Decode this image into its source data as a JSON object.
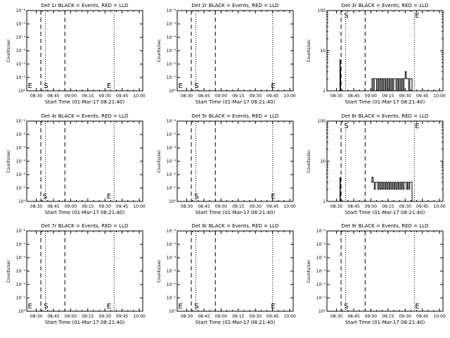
{
  "page": {
    "background": "#ffffff",
    "ink": "#000000"
  },
  "chart_data": [
    {
      "type": "line",
      "title": "Det 1r BLACK = Events, RED = LLD",
      "xlabel": "Start Time (01-Mar-17 08:21:40)",
      "ylabel": "Counts/sec",
      "x_ticks": [
        "08:30",
        "08:45",
        "09:00",
        "09:15",
        "09:30",
        "09:45",
        "10:00"
      ],
      "y_scale": "log",
      "y_ticks": [
        "10⁰",
        "10⁻¹",
        "10⁻²",
        "10⁻³",
        "10⁻⁴",
        "10⁻⁵",
        "10⁻⁶"
      ],
      "markers": [
        {
          "label": "E",
          "time": "08:22"
        },
        {
          "label": "S",
          "time": "08:36"
        },
        {
          "label": "E",
          "time": "09:31"
        }
      ],
      "dashed_lines": [
        "08:34",
        "08:55"
      ],
      "dotted_lines": [
        "08:38",
        "09:38"
      ],
      "series": []
    },
    {
      "type": "line",
      "title": "Det 2r BLACK = Events, RED = LLD",
      "xlabel": "Start Time (01-Mar-17 08:21:40)",
      "ylabel": "Counts/sec",
      "x_ticks": [
        "08:30",
        "08:45",
        "09:00",
        "09:15",
        "09:30",
        "09:45",
        "10:00"
      ],
      "y_scale": "log",
      "y_ticks": [
        "10⁰",
        "10⁻¹",
        "10⁻²",
        "10⁻³",
        "10⁻⁴",
        "10⁻⁵",
        "10⁻⁶"
      ],
      "markers": [
        {
          "label": "E",
          "time": "08:22"
        },
        {
          "label": "S",
          "time": "08:36"
        },
        {
          "label": "E",
          "time": "09:43"
        }
      ],
      "dashed_lines": [
        "08:34",
        "08:55"
      ],
      "dotted_lines": [
        "08:38",
        "09:45"
      ],
      "series": []
    },
    {
      "type": "line",
      "title": "Det 3r BLACK = Events, RED = LLD",
      "xlabel": "Start Time (01-Mar-17 08:21:40)",
      "ylabel": "Counts/sec",
      "x_ticks": [
        "08:30",
        "08:45",
        "09:00",
        "09:15",
        "09:30",
        "09:45",
        "10:00"
      ],
      "y_scale": "log",
      "y_ticks": [
        "100",
        "10",
        "1"
      ],
      "markers": [
        {
          "label": "S",
          "time": "08:36"
        },
        {
          "label": "E",
          "time": "09:38"
        }
      ],
      "dashed_lines": [
        "08:34",
        "08:55"
      ],
      "dotted_lines": [
        "08:38",
        "09:38"
      ],
      "series": [
        {
          "color": "#000000",
          "points": [
            [
              "08:33:00",
              1
            ],
            [
              "08:33:00",
              6
            ],
            [
              "08:33:20",
              6
            ],
            [
              "08:33:20",
              3
            ],
            [
              "08:33:40",
              3
            ],
            [
              "08:33:40",
              1
            ]
          ]
        },
        {
          "color": "#000000",
          "points": [
            [
              "09:01",
              1
            ],
            [
              "09:01",
              2
            ],
            [
              "09:02",
              2
            ],
            [
              "09:02",
              1
            ],
            [
              "09:03",
              1
            ],
            [
              "09:03",
              2
            ],
            [
              "09:05",
              2
            ],
            [
              "09:05",
              1
            ],
            [
              "09:06",
              1
            ],
            [
              "09:06",
              2
            ],
            [
              "09:07",
              2
            ],
            [
              "09:07",
              1
            ],
            [
              "09:08",
              1
            ],
            [
              "09:08",
              2
            ],
            [
              "09:09",
              2
            ],
            [
              "09:09",
              1
            ],
            [
              "09:10",
              1
            ],
            [
              "09:10",
              2
            ],
            [
              "09:11",
              2
            ],
            [
              "09:11",
              1
            ],
            [
              "09:12",
              1
            ],
            [
              "09:12",
              2
            ],
            [
              "09:13",
              2
            ],
            [
              "09:13",
              1
            ],
            [
              "09:14",
              1
            ],
            [
              "09:14",
              2
            ],
            [
              "09:15",
              2
            ],
            [
              "09:15",
              1
            ],
            [
              "09:16",
              1
            ],
            [
              "09:16",
              2
            ],
            [
              "09:17",
              2
            ],
            [
              "09:17",
              1
            ],
            [
              "09:18",
              1
            ],
            [
              "09:18",
              2
            ],
            [
              "09:19",
              2
            ],
            [
              "09:19",
              1
            ],
            [
              "09:20",
              1
            ],
            [
              "09:20",
              2
            ],
            [
              "09:22",
              2
            ],
            [
              "09:22",
              1
            ],
            [
              "09:23",
              1
            ],
            [
              "09:23",
              2
            ],
            [
              "09:24",
              2
            ],
            [
              "09:24",
              1
            ],
            [
              "09:25",
              1
            ],
            [
              "09:25",
              2
            ],
            [
              "09:26",
              2
            ],
            [
              "09:26",
              1
            ],
            [
              "09:27",
              1
            ],
            [
              "09:27",
              2
            ],
            [
              "09:28",
              2
            ],
            [
              "09:28",
              1
            ],
            [
              "09:29",
              1
            ],
            [
              "09:29",
              2
            ],
            [
              "09:30",
              2
            ],
            [
              "09:30",
              3
            ],
            [
              "09:31",
              3
            ],
            [
              "09:31",
              2
            ],
            [
              "09:33",
              2
            ],
            [
              "09:33",
              1
            ],
            [
              "09:34",
              1
            ],
            [
              "09:34",
              2
            ],
            [
              "09:36",
              2
            ],
            [
              "09:36",
              1
            ]
          ]
        }
      ]
    },
    {
      "type": "line",
      "title": "Det 4r BLACK = Events, RED = LLD",
      "xlabel": "Start Time (01-Mar-17 08:21:40)",
      "ylabel": "Counts/sec",
      "x_ticks": [
        "08:30",
        "08:45",
        "09:00",
        "09:15",
        "09:30",
        "09:45",
        "10:00"
      ],
      "y_scale": "log",
      "y_ticks": [
        "10⁰",
        "10⁻¹",
        "10⁻²",
        "10⁻³",
        "10⁻⁴",
        "10⁻⁵",
        "10⁻⁶"
      ],
      "markers": [
        {
          "label": "S",
          "time": "08:35"
        },
        {
          "label": "E",
          "time": "09:31"
        }
      ],
      "dashed_lines": [
        "08:34",
        "08:55"
      ],
      "dotted_lines": [
        "08:38",
        "09:38"
      ],
      "series": []
    },
    {
      "type": "line",
      "title": "Det 5r BLACK = Events, RED = LLD",
      "xlabel": "Start Time (01-Mar-17 08:21:40)",
      "ylabel": "Counts/sec",
      "x_ticks": [
        "08:30",
        "08:45",
        "09:00",
        "09:15",
        "09:30",
        "09:45",
        "10:00"
      ],
      "y_scale": "log",
      "y_ticks": [
        "10⁰",
        "10⁻¹",
        "10⁻²",
        "10⁻³",
        "10⁻⁴",
        "10⁻⁵",
        "10⁻⁶"
      ],
      "markers": [
        {
          "label": "S",
          "time": "08:36"
        },
        {
          "label": "E",
          "time": "09:43"
        }
      ],
      "dashed_lines": [
        "08:34",
        "08:55"
      ],
      "dotted_lines": [
        "08:38",
        "09:45"
      ],
      "series": []
    },
    {
      "type": "line",
      "title": "Det 6r BLACK = Events, RED = LLD",
      "xlabel": "Start Time (01-Mar-17 08:21:40)",
      "ylabel": "Counts/sec",
      "x_ticks": [
        "08:30",
        "08:45",
        "09:00",
        "09:15",
        "09:30",
        "09:45",
        "10:00"
      ],
      "y_scale": "log",
      "y_ticks": [
        "100",
        "10",
        "1"
      ],
      "markers": [
        {
          "label": "S",
          "time": "08:36"
        },
        {
          "label": "E",
          "time": "09:38"
        }
      ],
      "dashed_lines": [
        "08:34",
        "08:55"
      ],
      "dotted_lines": [
        "08:38",
        "09:38"
      ],
      "series": [
        {
          "color": "#000000",
          "points": [
            [
              "08:33:00",
              1
            ],
            [
              "08:33:00",
              4
            ],
            [
              "08:33:20",
              4
            ],
            [
              "08:33:20",
              1
            ]
          ]
        },
        {
          "color": "#000000",
          "points": [
            [
              "09:00",
              3
            ],
            [
              "09:01",
              3
            ],
            [
              "09:01",
              4
            ],
            [
              "09:02",
              4
            ],
            [
              "09:02",
              3
            ],
            [
              "09:03",
              3
            ],
            [
              "09:03",
              2
            ],
            [
              "09:04",
              2
            ],
            [
              "09:04",
              3
            ],
            [
              "09:06",
              3
            ],
            [
              "09:06",
              2
            ],
            [
              "09:07",
              2
            ],
            [
              "09:07",
              3
            ],
            [
              "09:08",
              3
            ],
            [
              "09:08",
              2
            ],
            [
              "09:09",
              2
            ],
            [
              "09:09",
              3
            ],
            [
              "09:10",
              3
            ],
            [
              "09:10",
              2
            ],
            [
              "09:11",
              2
            ],
            [
              "09:11",
              3
            ],
            [
              "09:12",
              3
            ],
            [
              "09:12",
              2
            ],
            [
              "09:13",
              2
            ],
            [
              "09:13",
              3
            ],
            [
              "09:14",
              3
            ],
            [
              "09:14",
              2
            ],
            [
              "09:15",
              2
            ],
            [
              "09:15",
              3
            ],
            [
              "09:16",
              3
            ],
            [
              "09:16",
              2
            ],
            [
              "09:17",
              2
            ],
            [
              "09:17",
              3
            ],
            [
              "09:18",
              3
            ],
            [
              "09:18",
              2
            ],
            [
              "09:19",
              2
            ],
            [
              "09:19",
              3
            ],
            [
              "09:20",
              3
            ],
            [
              "09:20",
              2
            ],
            [
              "09:21",
              2
            ],
            [
              "09:21",
              3
            ],
            [
              "09:22",
              3
            ],
            [
              "09:22",
              2
            ],
            [
              "09:23",
              2
            ],
            [
              "09:23",
              3
            ],
            [
              "09:24",
              3
            ],
            [
              "09:24",
              2
            ],
            [
              "09:25",
              2
            ],
            [
              "09:25",
              3
            ],
            [
              "09:26",
              3
            ],
            [
              "09:26",
              2
            ],
            [
              "09:27",
              2
            ],
            [
              "09:27",
              3
            ],
            [
              "09:28",
              3
            ],
            [
              "09:28",
              2
            ],
            [
              "09:29",
              2
            ],
            [
              "09:29",
              3
            ],
            [
              "09:31",
              3
            ],
            [
              "09:31",
              2
            ],
            [
              "09:32",
              2
            ],
            [
              "09:32",
              3
            ],
            [
              "09:33",
              3
            ],
            [
              "09:33",
              2
            ],
            [
              "09:34",
              2
            ],
            [
              "09:34",
              3
            ],
            [
              "09:36",
              3
            ],
            [
              "09:36",
              1
            ]
          ]
        }
      ]
    },
    {
      "type": "line",
      "title": "Det 7r BLACK = Events, RED = LLD",
      "xlabel": "Start Time (01-Mar-17 08:21:40)",
      "ylabel": "Counts/sec",
      "x_ticks": [
        "08:30",
        "08:45",
        "09:00",
        "09:15",
        "09:30",
        "09:45",
        "10:00"
      ],
      "y_scale": "log",
      "y_ticks": [
        "10⁰",
        "10⁻¹",
        "10⁻²",
        "10⁻³",
        "10⁻⁴",
        "10⁻⁵",
        "10⁻⁶"
      ],
      "markers": [
        {
          "label": "E",
          "time": "08:22"
        },
        {
          "label": "S",
          "time": "08:36"
        },
        {
          "label": "E",
          "time": "09:31"
        }
      ],
      "dashed_lines": [
        "08:34",
        "08:55"
      ],
      "dotted_lines": [
        "08:38",
        "09:38"
      ],
      "series": []
    },
    {
      "type": "line",
      "title": "Det 8r BLACK = Events, RED = LLD",
      "xlabel": "Start Time (01-Mar-17 08:21:40)",
      "ylabel": "Counts/sec",
      "x_ticks": [
        "08:30",
        "08:45",
        "09:00",
        "09:15",
        "09:30",
        "09:45",
        "10:00"
      ],
      "y_scale": "log",
      "y_ticks": [
        "10⁰",
        "10⁻¹",
        "10⁻²",
        "10⁻³",
        "10⁻⁴",
        "10⁻⁵",
        "10⁻⁶"
      ],
      "markers": [
        {
          "label": "E",
          "time": "08:22"
        },
        {
          "label": "S",
          "time": "08:36"
        },
        {
          "label": "E",
          "time": "09:43"
        }
      ],
      "dashed_lines": [
        "08:34",
        "08:55"
      ],
      "dotted_lines": [
        "08:38",
        "09:45"
      ],
      "series": []
    },
    {
      "type": "line",
      "title": "Det 9r BLACK = Events, RED = LLD",
      "xlabel": "Start Time (01-Mar-17 08:21:40)",
      "ylabel": "Counts/sec",
      "x_ticks": [
        "08:30",
        "08:45",
        "09:00",
        "09:15",
        "09:30",
        "09:45",
        "10:00"
      ],
      "y_scale": "log",
      "y_ticks": [
        "10⁰",
        "10⁻¹",
        "10⁻²",
        "10⁻³",
        "10⁻⁴",
        "10⁻⁵",
        "10⁻⁶"
      ],
      "markers": [
        {
          "label": "S",
          "time": "08:36"
        },
        {
          "label": "E",
          "time": "09:38"
        }
      ],
      "dashed_lines": [
        "08:34",
        "08:55"
      ],
      "dotted_lines": [
        "08:38",
        "09:38"
      ],
      "series": []
    }
  ]
}
